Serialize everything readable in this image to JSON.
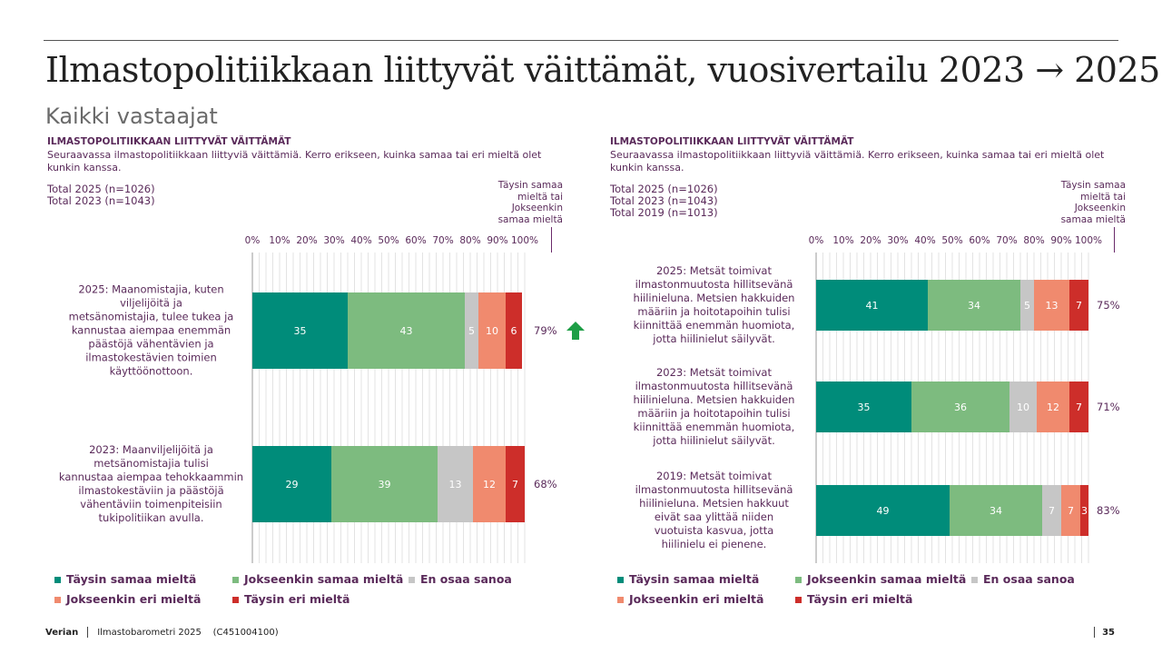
{
  "header": {
    "title": "Ilmastopolitiikkaan liittyvät väittämät, vuosivertailu 2023 → 2025",
    "subtitle": "Kaikki vastaajat"
  },
  "colors": {
    "full_agree": "#008C7A",
    "partly_agree": "#7DBB7F",
    "dont_know": "#C6C6C6",
    "partly_disagree": "#F08A6E",
    "full_disagree": "#CD2E2A",
    "arrow_up": "#1E9E46"
  },
  "legend": [
    {
      "label": "Täysin samaa mieltä",
      "color": "#008C7A"
    },
    {
      "label": "Jokseenkin samaa mieltä",
      "color": "#7DBB7F"
    },
    {
      "label": "En osaa sanoa",
      "color": "#C6C6C6"
    },
    {
      "label": "Jokseenkin eri mieltä",
      "color": "#F08A6E"
    },
    {
      "label": "Täysin eri mieltä",
      "color": "#CD2E2A"
    }
  ],
  "chart_data": [
    {
      "type": "bar",
      "orientation": "horizontal-stacked",
      "question_heading": "ILMASTOPOLITIIKKAAN LIITTYVÄT VÄITTÄMÄT",
      "question_text": "Seuraavassa ilmastopolitiikkaan liittyviä väittämiä. Kerro erikseen, kuinka samaa tai eri mieltä olet kunkin kanssa.",
      "totals": [
        "Total 2025 (n=1026)",
        "Total 2023 (n=1043)"
      ],
      "net_label": "Täysin samaa mieltä tai Jokseenkin samaa mieltä",
      "xlim": [
        0,
        100
      ],
      "x_ticks": [
        "0%",
        "10%",
        "20%",
        "30%",
        "40%",
        "50%",
        "60%",
        "70%",
        "80%",
        "90%",
        "100%"
      ],
      "categories": [
        "2025: Maanomistajia, kuten viljelijöitä ja metsänomistajia, tulee tukea ja kannustaa aiempaa enemmän päästöjä vähentävien ja ilmastokestävien toimien käyttöönottoon.",
        "2023: Maanviljelijöitä ja metsänomistajia tulisi kannustaa aiempaa tehokkaammin ilmastokestäviin ja päästöjä vähentäviin toimenpiteisiin tukipolitiikan avulla."
      ],
      "series": [
        {
          "name": "Täysin samaa mieltä",
          "values": [
            35,
            29
          ]
        },
        {
          "name": "Jokseenkin samaa mieltä",
          "values": [
            43,
            39
          ]
        },
        {
          "name": "En osaa sanoa",
          "values": [
            5,
            13
          ]
        },
        {
          "name": "Jokseenkin eri mieltä",
          "values": [
            10,
            12
          ]
        },
        {
          "name": "Täysin eri mieltä",
          "values": [
            6,
            7
          ]
        }
      ],
      "net_values": [
        "79%",
        "68%"
      ],
      "trend": [
        "up",
        null
      ]
    },
    {
      "type": "bar",
      "orientation": "horizontal-stacked",
      "question_heading": "ILMASTOPOLITIIKKAAN LIITTYVÄT VÄITTÄMÄT",
      "question_text": "Seuraavassa ilmastopolitiikkaan liittyviä väittämiä. Kerro erikseen, kuinka samaa tai eri mieltä olet kunkin kanssa.",
      "totals": [
        "Total 2025 (n=1026)",
        "Total 2023 (n=1043)",
        "Total 2019 (n=1013)"
      ],
      "net_label": "Täysin samaa mieltä tai Jokseenkin samaa mieltä",
      "xlim": [
        0,
        100
      ],
      "x_ticks": [
        "0%",
        "10%",
        "20%",
        "30%",
        "40%",
        "50%",
        "60%",
        "70%",
        "80%",
        "90%",
        "100%"
      ],
      "categories": [
        "2025: Metsät toimivat ilmastonmuutosta hillitsevänä hiilinieluna. Metsien hakkuiden määriin ja hoitotapoihin tulisi kiinnittää enemmän huomiota, jotta hiilinielut säilyvät.",
        "2023: Metsät toimivat ilmastonmuutosta hillitsevänä hiilinieluna. Metsien hakkuiden määriin ja hoitotapoihin tulisi kiinnittää enemmän huomiota, jotta hiilinielut säilyvät.",
        "2019: Metsät toimivat ilmastonmuutosta hillitsevänä hiilinieluna. Metsien hakkuut eivät saa ylittää niiden vuotuista kasvua, jotta hiilinielu ei pienene."
      ],
      "series": [
        {
          "name": "Täysin samaa mieltä",
          "values": [
            41,
            35,
            49
          ]
        },
        {
          "name": "Jokseenkin samaa mieltä",
          "values": [
            34,
            36,
            34
          ]
        },
        {
          "name": "En osaa sanoa",
          "values": [
            5,
            10,
            7
          ]
        },
        {
          "name": "Jokseenkin eri mieltä",
          "values": [
            13,
            12,
            7
          ]
        },
        {
          "name": "Täysin eri mieltä",
          "values": [
            7,
            7,
            3
          ]
        }
      ],
      "net_values": [
        "75%",
        "71%",
        "83%"
      ],
      "trend": [
        null,
        null,
        null
      ]
    }
  ],
  "footer": {
    "brand": "Verian",
    "report": "Ilmastobarometri 2025",
    "code": "(C451004100)",
    "page": "35"
  }
}
